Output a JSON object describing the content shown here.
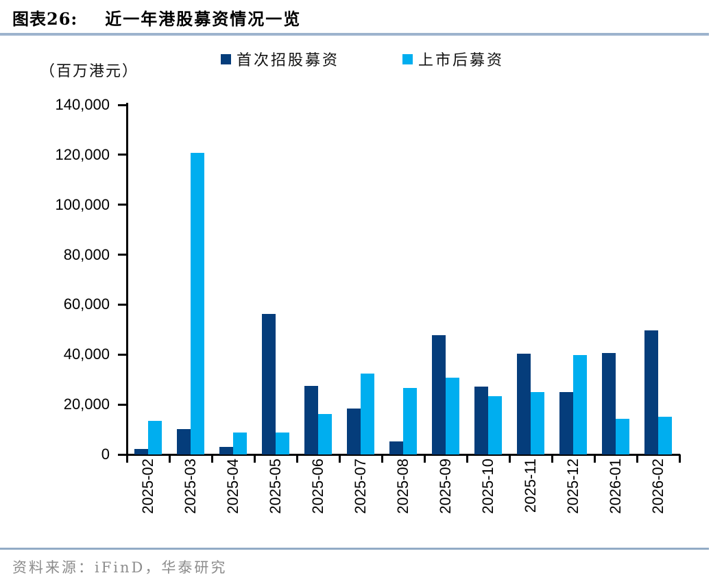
{
  "header": {
    "figure_label": "图表26:",
    "title": "近一年港股募资情况一览"
  },
  "chart_data": {
    "type": "bar",
    "title": "近一年港股募资情况一览",
    "unit_label": "（百万港元）",
    "categories": [
      "2025-02",
      "2025-03",
      "2025-04",
      "2025-05",
      "2025-06",
      "2025-07",
      "2025-08",
      "2025-09",
      "2025-10",
      "2025-11",
      "2025-12",
      "2026-01",
      "2026-02"
    ],
    "series": [
      {
        "key": "ipo",
        "name": "首次招股募资",
        "color": "#053d7b",
        "values": [
          2200,
          10100,
          3000,
          56300,
          27400,
          18400,
          5300,
          47900,
          27300,
          40400,
          25000,
          40500,
          49800
        ]
      },
      {
        "key": "post-listing",
        "name": "上市后募资",
        "color": "#00aeef",
        "values": [
          13500,
          120700,
          8800,
          8700,
          16100,
          32300,
          26600,
          30700,
          23300,
          25000,
          39700,
          14300,
          15100
        ]
      }
    ],
    "ylim": [
      0,
      140000
    ],
    "ytick_step": 20000,
    "ytick_labels": [
      "0",
      "20,000",
      "40,000",
      "60,000",
      "80,000",
      "100,000",
      "120,000",
      "140,000"
    ],
    "legend_position": "top",
    "grid": false,
    "axis_color": "#000000"
  },
  "footer": {
    "source": "资料来源：iFinD，华泰研究"
  }
}
